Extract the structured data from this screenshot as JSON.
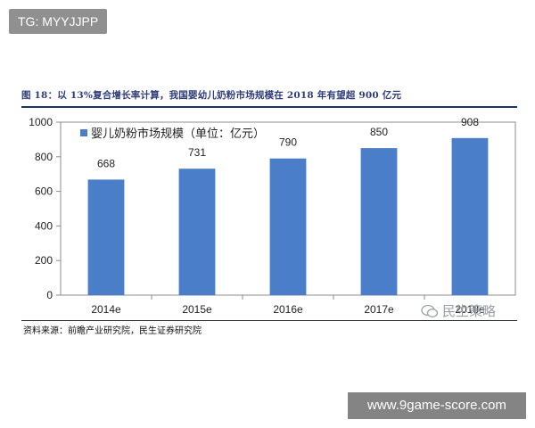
{
  "watermark_top": "TG: MYYJJPP",
  "figure_title": "图 18：以 13%复合增长率计算，我国婴幼儿奶粉市场规模在 2018 年有望超 900 亿元",
  "source": "资料来源：前瞻产业研究院，民生证券研究院",
  "brand_watermark": "民生策略",
  "site_watermark": "www.9game-score.com",
  "colors": {
    "bar": "#4a7ec9",
    "title": "#2f3e7a",
    "rule": "#20336b"
  },
  "chart_data": {
    "type": "bar",
    "categories": [
      "2014e",
      "2015e",
      "2016e",
      "2017e",
      "2018e"
    ],
    "series": [
      {
        "name": "婴儿奶粉市场规模（单位：亿元）",
        "values": [
          668,
          731,
          790,
          850,
          908
        ]
      }
    ],
    "value_labels": [
      "668",
      "731",
      "790",
      "850",
      "908"
    ],
    "ylim": [
      0,
      1000
    ],
    "yticks": [
      "0",
      "200",
      "400",
      "600",
      "800",
      "1000"
    ],
    "legend_position": "top-left",
    "grid": false
  }
}
